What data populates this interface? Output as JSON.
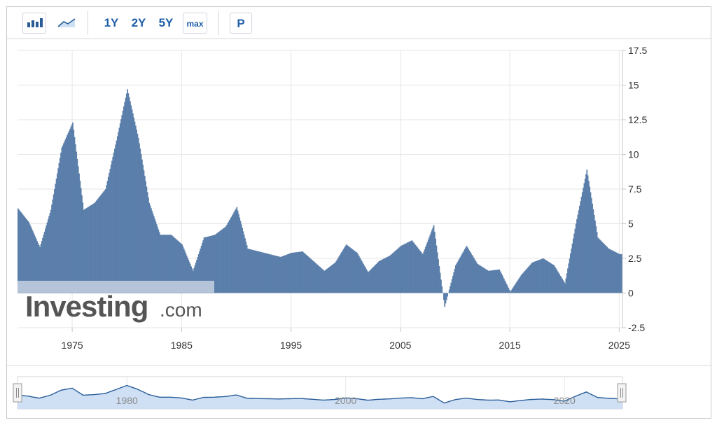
{
  "toolbar": {
    "bar_chart_icon": "bar-chart-icon",
    "area_chart_icon": "area-chart-icon",
    "range_1y": "1Y",
    "range_2y": "2Y",
    "range_5y": "5Y",
    "range_max": "max",
    "p_label": "P"
  },
  "watermark": {
    "brand": "Investing",
    "suffix": ".com"
  },
  "colors": {
    "bars": "#5b7faa",
    "navigator_fill": "#cfe0f5",
    "navigator_line": "#2a5d98",
    "accent": "#f3a31b"
  },
  "chart_data": {
    "type": "bar",
    "title": "",
    "xlabel": "",
    "ylabel": "",
    "xlim": [
      1970,
      2025.3
    ],
    "ylim": [
      -2.5,
      17.5
    ],
    "y_ticks": [
      "17.5",
      "15",
      "12.5",
      "10",
      "7.5",
      "5",
      "2.5",
      "0",
      "-2.5"
    ],
    "x_ticks": [
      "1975",
      "1985",
      "1995",
      "2005",
      "2015",
      "2025"
    ],
    "navigator_ticks": [
      "1980",
      "2000",
      "2020"
    ],
    "grid": true,
    "series": [
      {
        "name": "",
        "x": [
          1970,
          1971,
          1972,
          1973,
          1974,
          1975,
          1976,
          1977,
          1978,
          1979,
          1980,
          1981,
          1982,
          1983,
          1984,
          1985,
          1986,
          1987,
          1988,
          1989,
          1990,
          1991,
          1992,
          1993,
          1994,
          1995,
          1996,
          1997,
          1998,
          1999,
          2000,
          2001,
          2002,
          2003,
          2004,
          2005,
          2006,
          2007,
          2008,
          2009,
          2010,
          2011,
          2012,
          2013,
          2014,
          2015,
          2016,
          2017,
          2018,
          2019,
          2020,
          2021,
          2022,
          2023,
          2024,
          2025
        ],
        "values": [
          6.1,
          5.1,
          3.3,
          6.0,
          10.5,
          12.3,
          6.0,
          6.5,
          7.5,
          11.0,
          14.7,
          11.2,
          6.5,
          4.2,
          4.2,
          3.5,
          1.6,
          4.0,
          4.2,
          4.8,
          6.2,
          3.2,
          3.0,
          2.8,
          2.6,
          2.9,
          3.0,
          2.3,
          1.6,
          2.2,
          3.5,
          2.9,
          1.5,
          2.3,
          2.7,
          3.4,
          3.8,
          2.8,
          4.9,
          -1.0,
          2.0,
          3.4,
          2.1,
          1.6,
          1.7,
          0.1,
          1.3,
          2.2,
          2.5,
          2.0,
          0.7,
          5.0,
          8.9,
          4.0,
          3.2,
          2.8
        ]
      }
    ]
  }
}
